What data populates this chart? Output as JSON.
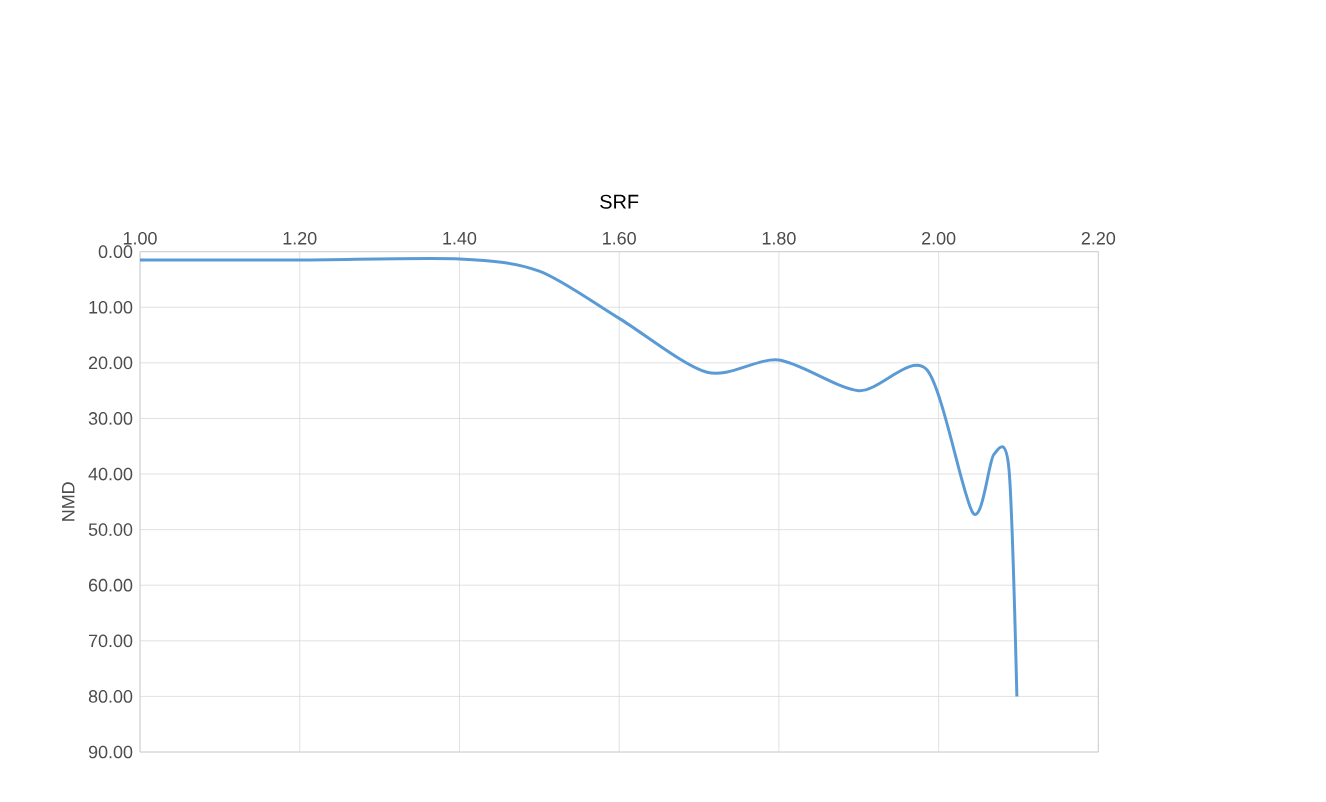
{
  "chart_data": {
    "type": "line",
    "xlabel": "SRF",
    "ylabel": "NMD",
    "xlim": [
      1.0,
      2.2
    ],
    "xticks": [
      {
        "value": 1.0,
        "label": "1.00"
      },
      {
        "value": 1.2,
        "label": "1.20"
      },
      {
        "value": 1.4,
        "label": "1.40"
      },
      {
        "value": 1.6,
        "label": "1.60"
      },
      {
        "value": 1.8,
        "label": "1.80"
      },
      {
        "value": 2.0,
        "label": "2.00"
      },
      {
        "value": 2.2,
        "label": "2.20"
      }
    ],
    "ylim": [
      90,
      0
    ],
    "yticks": [
      {
        "value": 0,
        "label": "0.00"
      },
      {
        "value": 10,
        "label": "10.00"
      },
      {
        "value": 20,
        "label": "20.00"
      },
      {
        "value": 30,
        "label": "30.00"
      },
      {
        "value": 40,
        "label": "40.00"
      },
      {
        "value": 50,
        "label": "50.00"
      },
      {
        "value": 60,
        "label": "60.00"
      },
      {
        "value": 70,
        "label": "70.00"
      },
      {
        "value": 80,
        "label": "80.00"
      },
      {
        "value": 90,
        "label": "90.00"
      }
    ],
    "grid": true,
    "marker": "none",
    "line_style": "solid",
    "x": [
      1.0,
      1.2,
      1.4,
      1.5,
      1.6,
      1.71,
      1.8,
      1.9,
      1.985,
      2.043,
      2.069,
      2.088,
      2.098
    ],
    "series": [
      {
        "color": "#5b9bd5",
        "values": [
          1.5,
          1.5,
          1.3,
          3.5,
          12,
          21.7,
          19.5,
          25,
          21.2,
          47,
          36.5,
          39,
          80
        ]
      }
    ]
  }
}
